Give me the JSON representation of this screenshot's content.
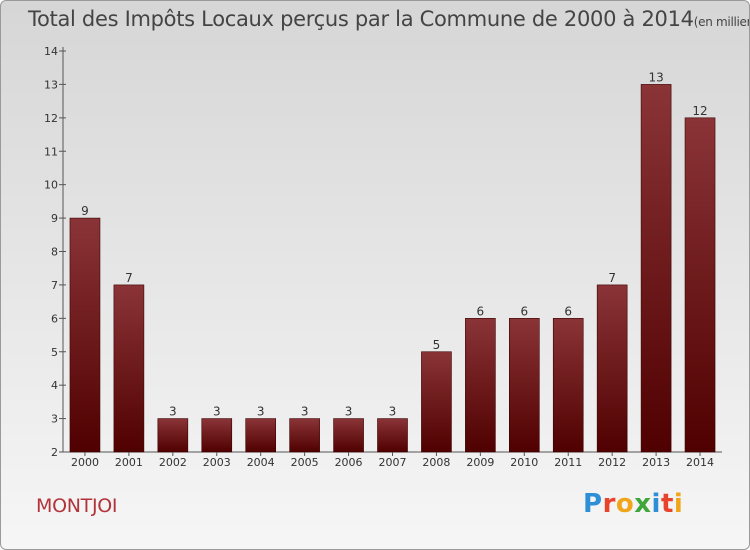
{
  "header": {
    "title": "Total des Impôts Locaux perçus par la Commune de 2000 à 2014",
    "unit": "(en milliers d'€)"
  },
  "footer": {
    "commune": "MONTJOI",
    "logo": "Proxiti"
  },
  "colors": {
    "bar_top": "#8a3437",
    "bar_bottom": "#500000",
    "commune_text": "#b3333a",
    "logo_letters": [
      "#2f8fd6",
      "#e8442b",
      "#f0a61a",
      "#3fa63a",
      "#2f8fd6",
      "#e8442b",
      "#f0a61a"
    ]
  },
  "chart_data": {
    "type": "bar",
    "categories": [
      "2000",
      "2001",
      "2002",
      "2003",
      "2004",
      "2005",
      "2006",
      "2007",
      "2008",
      "2009",
      "2010",
      "2011",
      "2012",
      "2013",
      "2014"
    ],
    "values": [
      9,
      7,
      3,
      3,
      3,
      3,
      3,
      3,
      5,
      6,
      6,
      6,
      7,
      13,
      12
    ],
    "title": "Total des Impôts Locaux perçus par la Commune de 2000 à 2014",
    "xlabel": "",
    "ylabel": "",
    "ylim": [
      2,
      14
    ],
    "yticks": [
      2,
      3,
      4,
      5,
      6,
      7,
      8,
      9,
      10,
      11,
      12,
      13,
      14
    ],
    "grid": false,
    "data_labels": true
  }
}
